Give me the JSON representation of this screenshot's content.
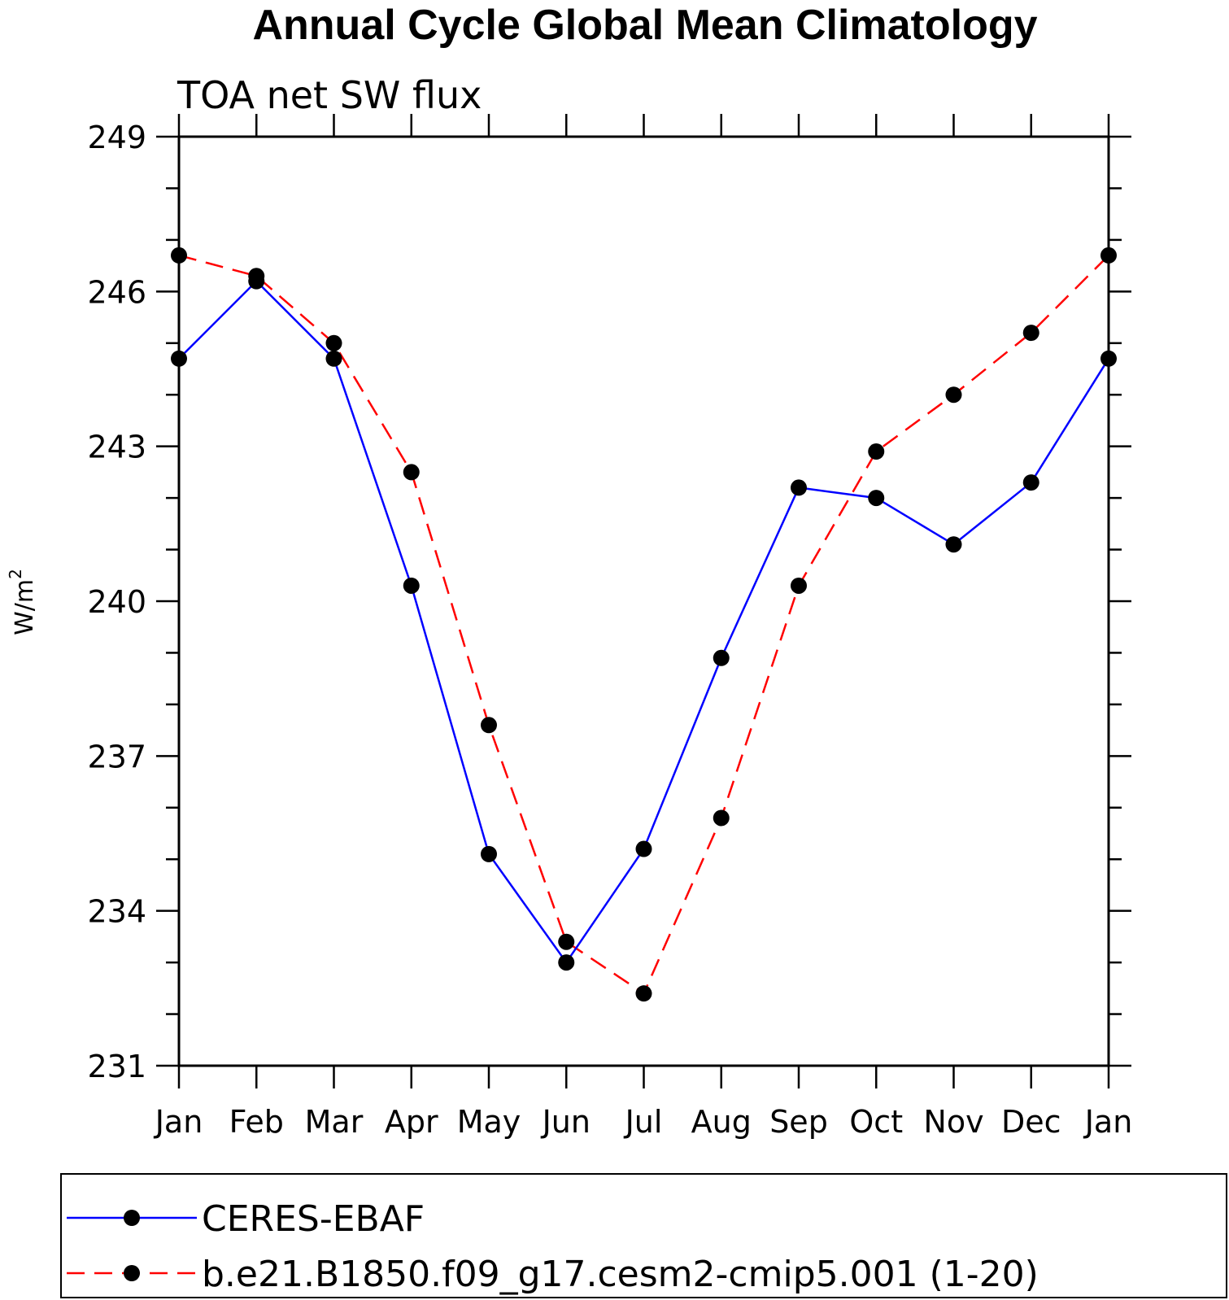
{
  "chart_data": {
    "type": "line",
    "title": "Annual Cycle Global Mean Climatology",
    "subtitle": "TOA net SW flux",
    "ylabel": "W/m",
    "ylabel_sup": "2",
    "xlabel": "",
    "ylim": [
      231,
      249
    ],
    "yticks": [
      231,
      234,
      237,
      240,
      243,
      246,
      249
    ],
    "categories": [
      "Jan",
      "Feb",
      "Mar",
      "Apr",
      "May",
      "Jun",
      "Jul",
      "Aug",
      "Sep",
      "Oct",
      "Nov",
      "Dec",
      "Jan"
    ],
    "series": [
      {
        "name": "CERES-EBAF",
        "color": "#0000ff",
        "dash": "solid",
        "values": [
          244.7,
          246.2,
          244.7,
          240.3,
          235.1,
          233.0,
          235.2,
          238.9,
          242.2,
          242.0,
          241.1,
          242.3,
          244.7
        ]
      },
      {
        "name": "b.e21.B1850.f09_g17.cesm2-cmip5.001 (1-20)",
        "color": "#ff0000",
        "dash": "dashed",
        "values": [
          246.7,
          246.3,
          245.0,
          242.5,
          237.6,
          233.4,
          232.4,
          235.8,
          240.3,
          242.9,
          244.0,
          245.2,
          246.7
        ]
      }
    ],
    "legend_position": "bottom"
  }
}
